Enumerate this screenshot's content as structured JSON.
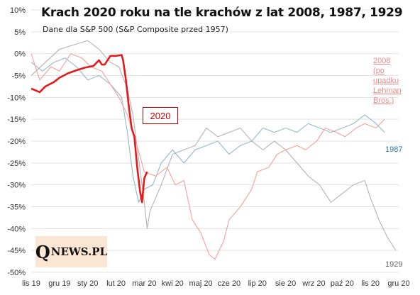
{
  "title": "Krach 2020 roku na tle krachów z lat 2008, 1987, 1929",
  "subtitle": "Dane dla S&P 500 (S&P Composite przed 1957)",
  "logo": {
    "q": "Q",
    "rest": "NEWS.PL",
    "bg": "#fbe6d3"
  },
  "colors": {
    "s2020": "#e31a1c",
    "s2008": "#f4a6a6",
    "s1987": "#9bbecb",
    "s1929": "#b9b9b9",
    "grid": "#e3e3e3"
  },
  "chart_data": {
    "type": "line",
    "title": "Krach 2020 roku na tle krachów z lat 2008, 1987, 1929",
    "xlabel": "",
    "ylabel": "",
    "ylim": [
      -50,
      10
    ],
    "yticks": [
      "10%",
      "5%",
      "0%",
      "-5%",
      "-10%",
      "-15%",
      "-20%",
      "-25%",
      "-30%",
      "-35%",
      "-40%",
      "-45%",
      "-50%"
    ],
    "xticks": [
      "lis 19",
      "gru 19",
      "sty 20",
      "lut 20",
      "mar 20",
      "kwi 20",
      "maj 20",
      "cze 20",
      "lip 20",
      "sie 20",
      "wrz 20",
      "paź 20",
      "lis 20",
      "gru 20"
    ],
    "grid": true,
    "labels": {
      "s2020": "2020",
      "s2008": [
        "2008",
        "(po",
        "upadku",
        "Lehman",
        "Bros.)"
      ],
      "s1987": "1987",
      "s1929": "1929"
    },
    "series": [
      {
        "name": "2020",
        "points": [
          [
            0,
            -8
          ],
          [
            0.3,
            -8.8
          ],
          [
            0.5,
            -7.5
          ],
          [
            0.8,
            -6.5
          ],
          [
            1,
            -5.5
          ],
          [
            1.3,
            -4.5
          ],
          [
            1.6,
            -3.8
          ],
          [
            1.9,
            -3.2
          ],
          [
            2.2,
            -2.8
          ],
          [
            2.4,
            -1.5
          ],
          [
            2.5,
            -2.5
          ],
          [
            2.6,
            -2.5
          ],
          [
            2.8,
            -0.5
          ],
          [
            3,
            -0.5
          ],
          [
            3.2,
            -0.3
          ],
          [
            3.25,
            -1.5
          ],
          [
            3.35,
            -6
          ],
          [
            3.45,
            -12
          ],
          [
            3.55,
            -17
          ],
          [
            3.65,
            -19
          ],
          [
            3.75,
            -26
          ],
          [
            3.85,
            -31.5
          ],
          [
            3.92,
            -34
          ],
          [
            4.0,
            -28.5
          ],
          [
            4.1,
            -27
          ]
        ]
      },
      {
        "name": "2008",
        "points": [
          [
            0,
            0
          ],
          [
            0.3,
            -6
          ],
          [
            0.7,
            -3
          ],
          [
            1,
            -4
          ],
          [
            1.4,
            0
          ],
          [
            1.8,
            -1
          ],
          [
            2.1,
            -3
          ],
          [
            2.5,
            -4
          ],
          [
            2.8,
            -7
          ],
          [
            3.1,
            -10
          ],
          [
            3.4,
            -14
          ],
          [
            3.7,
            -20
          ],
          [
            4,
            -27
          ],
          [
            4.4,
            -28
          ],
          [
            4.8,
            -26
          ],
          [
            5.1,
            -30
          ],
          [
            5.4,
            -29
          ],
          [
            5.7,
            -38
          ],
          [
            6,
            -41
          ],
          [
            6.3,
            -46
          ],
          [
            6.5,
            -47
          ],
          [
            6.8,
            -43
          ],
          [
            7.0,
            -38
          ],
          [
            7.4,
            -35
          ],
          [
            7.8,
            -31
          ],
          [
            8.0,
            -27
          ],
          [
            8.4,
            -26
          ],
          [
            8.7,
            -23
          ],
          [
            9.0,
            -22
          ],
          [
            9.4,
            -21
          ],
          [
            9.7,
            -22
          ],
          [
            10.1,
            -20
          ],
          [
            10.4,
            -17
          ],
          [
            10.8,
            -18
          ],
          [
            11.1,
            -19
          ],
          [
            11.5,
            -17
          ],
          [
            11.8,
            -16
          ],
          [
            12.2,
            -17
          ],
          [
            12.5,
            -15
          ]
        ]
      },
      {
        "name": "1987",
        "points": [
          [
            0,
            -2
          ],
          [
            0.4,
            -4
          ],
          [
            0.8,
            -2
          ],
          [
            1.2,
            -1
          ],
          [
            1.6,
            -3
          ],
          [
            2.0,
            -6
          ],
          [
            2.4,
            -5
          ],
          [
            2.8,
            -7
          ],
          [
            3.2,
            -10
          ],
          [
            3.4,
            -18
          ],
          [
            3.6,
            -28
          ],
          [
            3.8,
            -34
          ],
          [
            4.0,
            -31
          ],
          [
            4.3,
            -30
          ],
          [
            4.6,
            -25
          ],
          [
            5.0,
            -22
          ],
          [
            5.4,
            -25
          ],
          [
            5.8,
            -22
          ],
          [
            6.2,
            -21
          ],
          [
            6.6,
            -20
          ],
          [
            7.0,
            -23
          ],
          [
            7.4,
            -21
          ],
          [
            7.8,
            -20
          ],
          [
            8.2,
            -17
          ],
          [
            8.6,
            -18
          ],
          [
            9.0,
            -17
          ],
          [
            9.4,
            -18
          ],
          [
            9.8,
            -16
          ],
          [
            10.2,
            -17
          ],
          [
            10.6,
            -18
          ],
          [
            11.0,
            -17
          ],
          [
            11.4,
            -16
          ],
          [
            11.8,
            -14
          ],
          [
            12.2,
            -16
          ],
          [
            12.5,
            -18
          ]
        ]
      },
      {
        "name": "1929",
        "points": [
          [
            0,
            -5
          ],
          [
            0.5,
            -2
          ],
          [
            1.0,
            1
          ],
          [
            1.5,
            2
          ],
          [
            2.0,
            3
          ],
          [
            2.4,
            1
          ],
          [
            2.8,
            -2
          ],
          [
            3.1,
            -3
          ],
          [
            3.4,
            -8
          ],
          [
            3.6,
            -14
          ],
          [
            3.8,
            -24
          ],
          [
            4.0,
            -34
          ],
          [
            4.1,
            -40
          ],
          [
            4.2,
            -36
          ],
          [
            4.6,
            -30
          ],
          [
            5.0,
            -23
          ],
          [
            5.4,
            -22
          ],
          [
            5.8,
            -21
          ],
          [
            6.2,
            -17
          ],
          [
            6.6,
            -19
          ],
          [
            7.0,
            -18
          ],
          [
            7.4,
            -17
          ],
          [
            7.8,
            -20
          ],
          [
            8.2,
            -22
          ],
          [
            8.6,
            -20
          ],
          [
            9.0,
            -22
          ],
          [
            9.4,
            -25
          ],
          [
            9.8,
            -28
          ],
          [
            10.2,
            -30
          ],
          [
            10.6,
            -34
          ],
          [
            11.0,
            -32
          ],
          [
            11.4,
            -30
          ],
          [
            11.8,
            -29
          ],
          [
            12.0,
            -33
          ],
          [
            12.3,
            -38
          ],
          [
            12.6,
            -42
          ],
          [
            12.9,
            -45
          ]
        ]
      }
    ]
  }
}
